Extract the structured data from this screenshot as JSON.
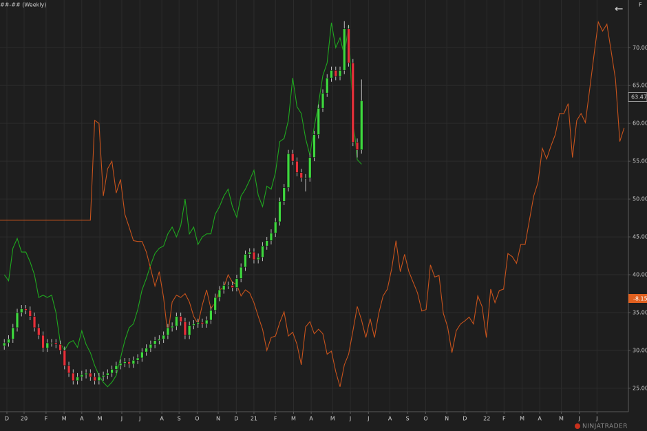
{
  "chart_data": {
    "type": "candlestick",
    "title": "##-## (Weekly)",
    "corner_label": "F",
    "watermark": "NINJATRADER",
    "xlim": [
      0,
      146
    ],
    "ylim": [
      21.9,
      76.3
    ],
    "grid": true,
    "yticks": [
      {
        "value": 25,
        "label": "25.00"
      },
      {
        "value": 30,
        "label": "30.00"
      },
      {
        "value": 35,
        "label": "35.00"
      },
      {
        "value": 40,
        "label": "40.00"
      },
      {
        "value": 45,
        "label": "45.00"
      },
      {
        "value": 50,
        "label": "50.00"
      },
      {
        "value": 55,
        "label": "55.00"
      },
      {
        "value": 60,
        "label": "60.00"
      },
      {
        "value": 65,
        "label": "65.00"
      },
      {
        "value": 70,
        "label": "70.00"
      }
    ],
    "xticks": [
      {
        "value": 1.6,
        "label": "D"
      },
      {
        "value": 5.6,
        "label": "20"
      },
      {
        "value": 10.7,
        "label": "F"
      },
      {
        "value": 14.9,
        "label": "M"
      },
      {
        "value": 19,
        "label": "A"
      },
      {
        "value": 23.2,
        "label": "M"
      },
      {
        "value": 28.3,
        "label": "J"
      },
      {
        "value": 32.5,
        "label": "J"
      },
      {
        "value": 37.6,
        "label": "A"
      },
      {
        "value": 41.6,
        "label": "S"
      },
      {
        "value": 45.8,
        "label": "O"
      },
      {
        "value": 50.7,
        "label": "N"
      },
      {
        "value": 54.9,
        "label": "D"
      },
      {
        "value": 59,
        "label": "21"
      },
      {
        "value": 64,
        "label": "F"
      },
      {
        "value": 68.2,
        "label": "M"
      },
      {
        "value": 72.3,
        "label": "A"
      },
      {
        "value": 77.3,
        "label": "M"
      },
      {
        "value": 81.4,
        "label": "J"
      },
      {
        "value": 85.6,
        "label": "J"
      },
      {
        "value": 90.6,
        "label": "A"
      },
      {
        "value": 94.7,
        "label": "S"
      },
      {
        "value": 98.9,
        "label": "O"
      },
      {
        "value": 103.8,
        "label": "N"
      },
      {
        "value": 108,
        "label": "D"
      },
      {
        "value": 113.1,
        "label": "22"
      },
      {
        "value": 117.1,
        "label": "F"
      },
      {
        "value": 121.3,
        "label": "M"
      },
      {
        "value": 125.4,
        "label": "A"
      },
      {
        "value": 130.4,
        "label": "M"
      },
      {
        "value": 134.6,
        "label": "J"
      },
      {
        "value": 138.7,
        "label": "J"
      }
    ],
    "candles": {
      "up_color": "#3ed83e",
      "down_color": "#e8303a",
      "x": [
        1,
        2,
        3,
        4,
        5,
        6,
        7,
        8,
        9,
        10,
        11,
        12,
        13,
        14,
        15,
        16,
        17,
        18,
        19,
        20,
        21,
        22,
        23,
        24,
        25,
        26,
        27,
        28,
        29,
        30,
        31,
        32,
        33,
        34,
        35,
        36,
        37,
        38,
        39,
        40,
        41,
        42,
        43,
        44,
        45,
        46,
        47,
        48,
        49,
        50,
        51,
        52,
        53,
        54,
        55,
        56,
        57,
        58,
        59,
        60,
        61,
        62,
        63,
        64,
        65,
        66,
        67,
        68,
        69,
        70,
        71,
        72,
        73,
        74,
        75,
        76,
        77,
        78,
        79,
        80,
        81,
        82,
        83,
        84
      ],
      "open": [
        30.6,
        31,
        31.5,
        33,
        35,
        35.5,
        35.3,
        34.5,
        33,
        32,
        30.3,
        31,
        31,
        30.8,
        30,
        28,
        27,
        26,
        26.5,
        26.8,
        27,
        26.5,
        26,
        26.5,
        26.7,
        27,
        27.5,
        28,
        28.3,
        28.5,
        28.2,
        28.7,
        29,
        29.8,
        30.3,
        30.8,
        31.3,
        31.5,
        32,
        33,
        33.2,
        34.5,
        33.8,
        32,
        33.3,
        33.5,
        33.7,
        33.5,
        34,
        35.3,
        37,
        38,
        38.6,
        38.6,
        38.3,
        39.5,
        41,
        42.7,
        43,
        42,
        42.3,
        43.8,
        44.5,
        45.5,
        47,
        49.7,
        51.5,
        56,
        55,
        53.5,
        52.8,
        52.8,
        55.5,
        58.5,
        62,
        64,
        66,
        67,
        66.2,
        67,
        72.5,
        68,
        57.5,
        56.5
      ],
      "high": [
        31.5,
        32,
        33.5,
        35.5,
        36,
        36,
        35.8,
        35,
        33.5,
        32.5,
        31.5,
        31.5,
        31.5,
        31.3,
        30.5,
        28.5,
        27.5,
        27,
        27.3,
        27.5,
        27.5,
        27,
        27,
        27.2,
        27.5,
        28,
        28.5,
        28.8,
        29,
        29,
        29.2,
        29.5,
        30.3,
        30.8,
        31.3,
        31.8,
        32,
        32.5,
        33.5,
        33.7,
        35,
        35,
        34.3,
        33.8,
        34,
        34.2,
        34.2,
        34.5,
        35.8,
        37.5,
        38.5,
        39.1,
        39.1,
        39.1,
        40,
        41.5,
        43.2,
        43.5,
        43.5,
        42.8,
        44.3,
        45,
        46,
        47.5,
        50.2,
        52,
        56.5,
        56.5,
        55.5,
        54,
        53.3,
        56,
        59,
        62.5,
        64.5,
        66.5,
        67.5,
        67.5,
        67.5,
        73.5,
        73,
        68.5,
        58,
        65.8
      ],
      "low": [
        30.1,
        30.5,
        31,
        32.5,
        34.5,
        34.8,
        34,
        32.5,
        31.5,
        29.8,
        29.8,
        30.5,
        30.3,
        29.5,
        27.5,
        26.5,
        25.5,
        25.5,
        26,
        26.3,
        26,
        25.5,
        25.5,
        26,
        26.2,
        26.5,
        27,
        27.5,
        27.8,
        27.7,
        27.7,
        28.2,
        28.5,
        29.3,
        29.8,
        30.3,
        30.8,
        31,
        31.5,
        32.5,
        32.7,
        33.3,
        31.5,
        31.5,
        32.8,
        33,
        33,
        33,
        33.5,
        34.8,
        36.5,
        37.5,
        38.1,
        37.8,
        37.8,
        39,
        40.5,
        42.2,
        41.5,
        41.5,
        41.8,
        43.3,
        44,
        45,
        46.5,
        49.2,
        51,
        54.5,
        53,
        52.3,
        51,
        52.3,
        55,
        58,
        61.5,
        63.5,
        65.5,
        65.7,
        65.7,
        66.5,
        67.5,
        57,
        55.5,
        56
      ],
      "close": [
        31,
        31.5,
        33,
        35,
        35.5,
        35.3,
        34.5,
        33,
        32,
        30.3,
        31,
        31,
        30.8,
        30,
        28,
        27,
        26,
        26.5,
        26.8,
        27,
        26.5,
        26,
        26.5,
        26.7,
        27,
        27.5,
        28,
        28.3,
        28.5,
        28.2,
        28.7,
        29,
        29.8,
        30.3,
        30.8,
        31.3,
        31.5,
        32,
        33,
        33.2,
        34.5,
        33.8,
        32,
        33.3,
        33.5,
        33.7,
        33.5,
        34,
        35.3,
        37,
        38,
        38.6,
        38.6,
        38.3,
        39.5,
        41,
        42.7,
        43,
        42,
        42.3,
        43.8,
        44.5,
        45.5,
        47,
        49.7,
        51.5,
        56,
        55,
        53.5,
        52.8,
        52.8,
        55.5,
        58.5,
        62,
        64,
        66,
        67,
        66.2,
        67,
        72.5,
        68,
        57.5,
        56.5,
        63
      ]
    },
    "lines": [
      {
        "color": "#1fa81f",
        "x": [
          1,
          2,
          3,
          4,
          5,
          6,
          7,
          8,
          9,
          10,
          11,
          12,
          13,
          14,
          15,
          16,
          17,
          18,
          19,
          20,
          21,
          22,
          23,
          24,
          25,
          26,
          27,
          28,
          29,
          30,
          31,
          32,
          33,
          34,
          35,
          36,
          37,
          38,
          39,
          40,
          41,
          42,
          43,
          44,
          45,
          46,
          47,
          48,
          49,
          50,
          51,
          52,
          53,
          54,
          55,
          56,
          57,
          58,
          59,
          60,
          61,
          62,
          63,
          64,
          65,
          66,
          67,
          68,
          69,
          70,
          71,
          72,
          73,
          74,
          75,
          76,
          77,
          78,
          79,
          80,
          81,
          82,
          83,
          84
        ],
        "values": [
          40,
          39.2,
          43.5,
          44.8,
          43,
          43,
          41.7,
          40,
          37,
          37.3,
          37,
          37.3,
          35,
          31,
          30,
          31,
          31.3,
          30.4,
          32.6,
          30.8,
          29.7,
          28,
          26.7,
          25.8,
          25.2,
          25.8,
          26.7,
          29,
          31.3,
          33,
          33.5,
          35.4,
          38,
          39.5,
          41.3,
          42.8,
          43.5,
          43.8,
          45.4,
          46.3,
          45,
          46.5,
          50,
          45.4,
          46.3,
          44,
          45,
          45.4,
          45.4,
          48,
          49,
          50.4,
          51.3,
          49,
          47.6,
          50.4,
          51.3,
          52.5,
          53.8,
          50.5,
          49,
          51.7,
          51.3,
          53.5,
          57.6,
          58,
          60.4,
          66,
          62.2,
          61.3,
          58,
          55.8,
          59.5,
          62.6,
          66.3,
          68,
          73.3,
          70,
          71.3,
          69,
          73,
          60.8,
          55.2,
          54.6
        ]
      },
      {
        "color": "#c8531c",
        "x": [
          0,
          21,
          22,
          23,
          24,
          25,
          26,
          27,
          28,
          29,
          30,
          31,
          32,
          33,
          34,
          35,
          36,
          37,
          38,
          39,
          40,
          41,
          42,
          43,
          44,
          45,
          46,
          47,
          48,
          49,
          50,
          51,
          52,
          53,
          54,
          55,
          56,
          57,
          58,
          59,
          60,
          61,
          62,
          63,
          64,
          65,
          66,
          67,
          68,
          69,
          70,
          71,
          72,
          73,
          74,
          75,
          76,
          77,
          78,
          79,
          80,
          81,
          82,
          83,
          84,
          85,
          86,
          87,
          88,
          89,
          90,
          91,
          92,
          93,
          94,
          95,
          96,
          97,
          98,
          99,
          100,
          101,
          102,
          103,
          104,
          105,
          106,
          107,
          108,
          109,
          110,
          111,
          112,
          113,
          114,
          115,
          116,
          117,
          118,
          119,
          120,
          121,
          122,
          123,
          124,
          125,
          126,
          127,
          128,
          129,
          130,
          131,
          132,
          133,
          134,
          135,
          136,
          137,
          138,
          139,
          140,
          141,
          142,
          143,
          144,
          145
        ],
        "values": [
          47.2,
          47.2,
          60.4,
          60,
          50.4,
          54,
          55,
          50.8,
          52.6,
          48,
          46.3,
          44.5,
          44.4,
          44.4,
          43,
          40.8,
          38.5,
          40.4,
          37,
          32,
          36.4,
          37.3,
          37,
          37.5,
          36.4,
          34.5,
          33.5,
          36,
          38,
          35.5,
          36.4,
          38,
          38.3,
          40,
          39,
          38.7,
          37.2,
          38,
          37.6,
          36.3,
          34.5,
          32.8,
          30,
          31.7,
          31.9,
          33.7,
          35.1,
          31.9,
          32.4,
          30.8,
          28.1,
          33.1,
          33.8,
          32.2,
          32.8,
          32.2,
          29.5,
          29.9,
          27.2,
          25.2,
          28.1,
          29.5,
          32.6,
          35.8,
          34,
          31.7,
          34.2,
          31.7,
          34.9,
          37.2,
          38.1,
          40.8,
          44.5,
          40.4,
          42.7,
          40.4,
          39,
          37.6,
          35.2,
          35.4,
          41.3,
          39.7,
          39.9,
          34.9,
          33.1,
          29.7,
          32.6,
          33.5,
          33.9,
          34.4,
          33.5,
          37.2,
          35.8,
          31.7,
          38.1,
          36.3,
          37.9,
          38.1,
          42.8,
          42.4,
          41.5,
          44,
          44,
          47.2,
          50.4,
          52.2,
          56.7,
          55.3,
          57,
          58.5,
          61.3,
          61.3,
          62.6,
          55.5,
          60.4,
          61.3,
          60.1,
          64.5,
          69,
          73.4,
          72.2,
          73.1,
          69.5,
          65.8,
          57.6,
          59.4
        ]
      }
    ],
    "last_price": {
      "value": 63.47,
      "label": "63.47"
    },
    "indicator_label": "-8.15"
  }
}
